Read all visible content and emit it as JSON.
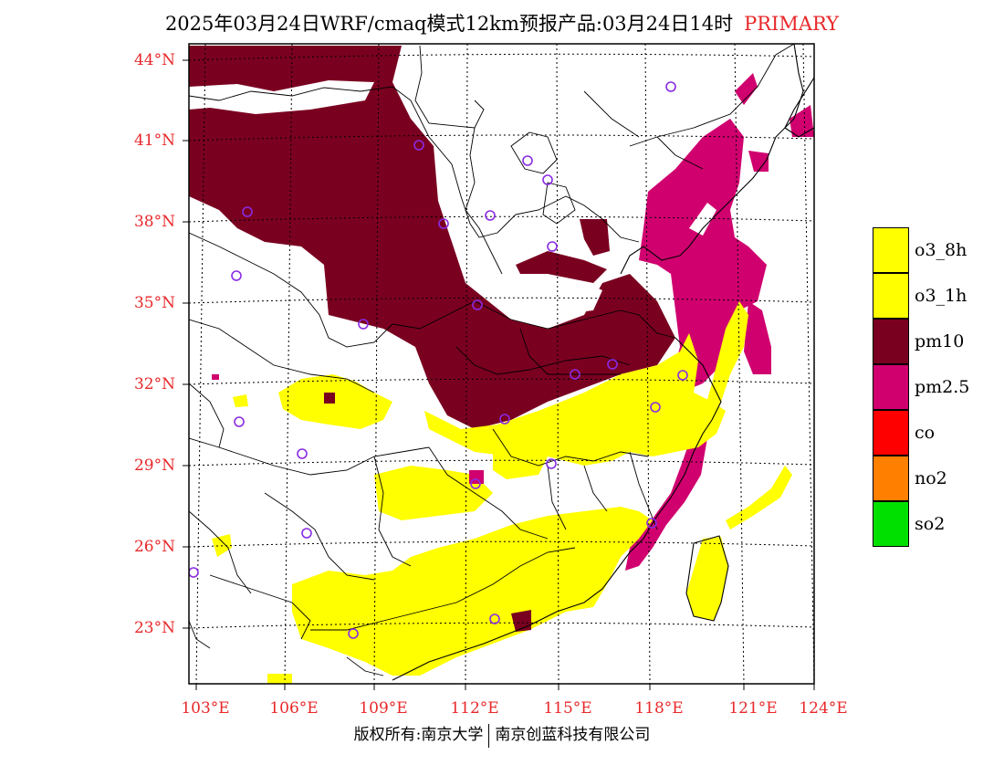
{
  "title": {
    "main": "2025年03月24日WRF/cmaq模式12km预报产品:03月24日14时",
    "tag": "PRIMARY"
  },
  "axes": {
    "lat_labels": [
      "44°N",
      "41°N",
      "38°N",
      "35°N",
      "32°N",
      "29°N",
      "26°N",
      "23°N"
    ],
    "lon_labels": [
      "103°E",
      "106°E",
      "109°E",
      "112°E",
      "115°E",
      "118°E",
      "121°E",
      "124°E"
    ],
    "label_color": "#e8282a"
  },
  "legend": {
    "items": [
      {
        "label": "o3_8h",
        "color": "#ffff00"
      },
      {
        "label": "o3_1h",
        "color": "#ffff00"
      },
      {
        "label": "pm10",
        "color": "#7a0020"
      },
      {
        "label": "pm2.5",
        "color": "#d0006f"
      },
      {
        "label": "co",
        "color": "#ff0000"
      },
      {
        "label": "no2",
        "color": "#ff7f00"
      },
      {
        "label": "so2",
        "color": "#00e000"
      }
    ]
  },
  "footer": {
    "left": "版权所有:南京大学",
    "right": "南京创蓝科技有限公司"
  },
  "colors": {
    "pm10": "#7a0020",
    "pm25": "#d0006f",
    "o3": "#ffff00",
    "station": "#8a2be2"
  }
}
